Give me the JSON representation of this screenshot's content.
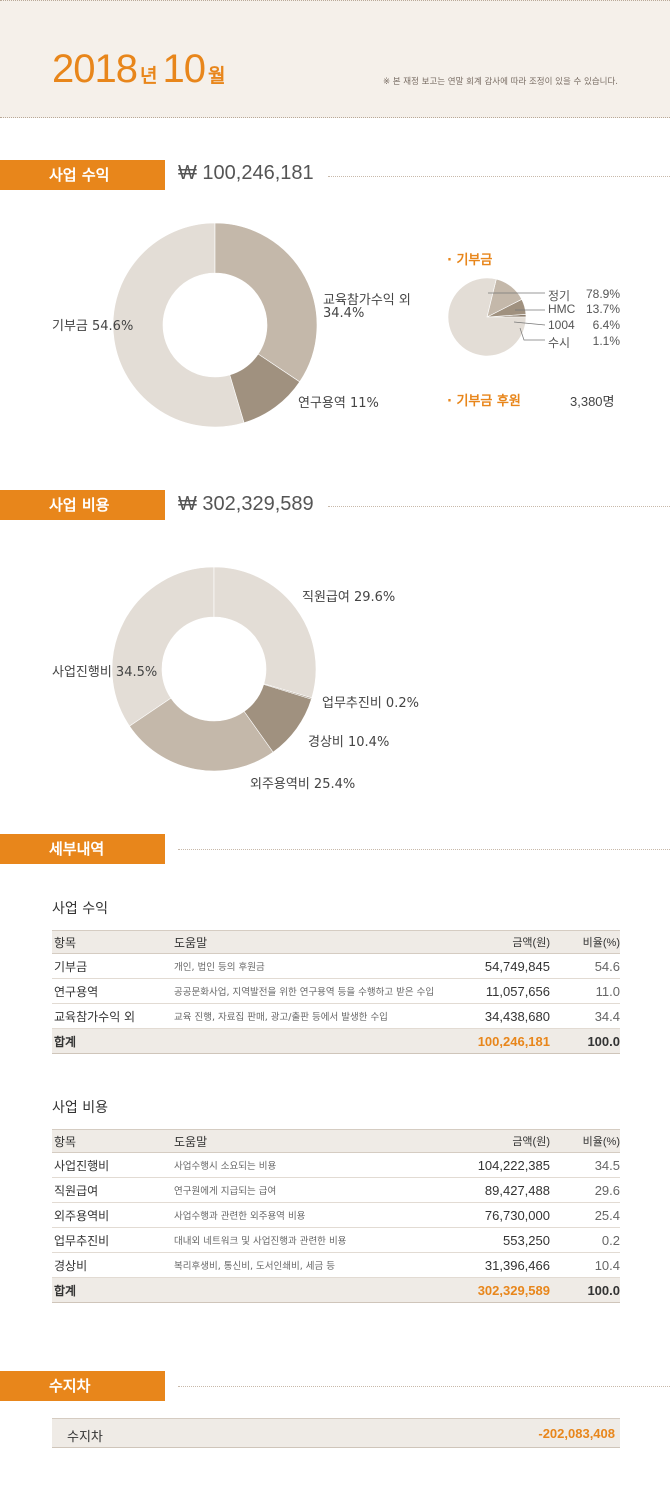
{
  "header": {
    "year": "2018",
    "year_unit": "년",
    "month": "10",
    "month_unit": "월",
    "note": "※ 본 재정 보고는 연말 회계 감사에 따라 조정이 있을 수 있습니다."
  },
  "revenue": {
    "tab": "사업 수익",
    "amount": "₩ 100,246,181",
    "labels": {
      "donation": "기부금 54.6%",
      "edu_line1": "교육참가수익 외",
      "edu_line2": "34.4%",
      "research": "연구용역 11%"
    }
  },
  "donation_detail": {
    "title": "· 기부금",
    "legend": [
      {
        "name": "정기",
        "value": "78.9%"
      },
      {
        "name": "HMC",
        "value": "13.7%"
      },
      {
        "name": "1004",
        "value": "6.4%"
      },
      {
        "name": "수시",
        "value": "1.1%"
      }
    ],
    "sponsor_title": "· 기부금 후원",
    "sponsor_count": "3,380명"
  },
  "expense": {
    "tab": "사업 비용",
    "amount": "₩ 302,329,589",
    "labels": {
      "salary": "직원급여 29.6%",
      "promotion": "업무추진비 0.2%",
      "overhead": "경상비 10.4%",
      "outsource": "외주용역비 25.4%",
      "project": "사업진행비 34.5%"
    }
  },
  "details": {
    "tab": "세부내역",
    "headers": {
      "item": "항목",
      "help": "도움말",
      "amount": "금액(원)",
      "ratio": "비율(%)"
    },
    "revenue_title": "사업 수익",
    "revenue_rows": [
      {
        "item": "기부금",
        "help": "개인, 법인 등의 후원금",
        "amount": "54,749,845",
        "ratio": "54.6"
      },
      {
        "item": "연구용역",
        "help": "공공문화사업, 지역발전을 위한 연구용역 등을 수행하고 받은 수입",
        "amount": "11,057,656",
        "ratio": "11.0"
      },
      {
        "item": "교육참가수익 외",
        "help": "교육 진행, 자료집 판매, 광고/출판 등에서 발생한 수입",
        "amount": "34,438,680",
        "ratio": "34.4"
      }
    ],
    "revenue_total": {
      "item": "합계",
      "amount": "100,246,181",
      "ratio": "100.0"
    },
    "expense_title": "사업 비용",
    "expense_rows": [
      {
        "item": "사업진행비",
        "help": "사업수행시 소요되는 비용",
        "amount": "104,222,385",
        "ratio": "34.5"
      },
      {
        "item": "직원급여",
        "help": "연구원에게 지급되는 급여",
        "amount": "89,427,488",
        "ratio": "29.6"
      },
      {
        "item": "외주용역비",
        "help": "사업수행과 관련한 외주용역 비용",
        "amount": "76,730,000",
        "ratio": "25.4"
      },
      {
        "item": "업무추진비",
        "help": "대내외 네트워크 및 사업진행과 관련한 비용",
        "amount": "553,250",
        "ratio": "0.2"
      },
      {
        "item": "경상비",
        "help": "복리후생비, 통신비, 도서인쇄비, 세금 등",
        "amount": "31,396,466",
        "ratio": "10.4"
      }
    ],
    "expense_total": {
      "item": "합계",
      "amount": "302,329,589",
      "ratio": "100.0"
    }
  },
  "balance": {
    "tab": "수지차",
    "label": "수지차",
    "value": "-202,083,408"
  },
  "colors": {
    "accent": "#e8861b",
    "donut_light": "#e3ddd6",
    "donut_mid": "#c4b8aa",
    "donut_dark": "#a0917f",
    "header_bg": "#f5f0ea"
  },
  "chart_data": [
    {
      "type": "pie",
      "categories": [
        "교육참가수익 외",
        "연구용역",
        "기부금"
      ],
      "values": [
        34.4,
        11.0,
        54.6
      ]
    },
    {
      "type": "pie",
      "categories": [
        "정기",
        "HMC",
        "1004",
        "수시"
      ],
      "values": [
        78.9,
        13.7,
        6.4,
        1.1
      ]
    },
    {
      "type": "pie",
      "categories": [
        "직원급여",
        "업무추진비",
        "경상비",
        "외주용역비",
        "사업진행비"
      ],
      "values": [
        29.6,
        0.2,
        10.4,
        25.4,
        34.5
      ]
    }
  ]
}
